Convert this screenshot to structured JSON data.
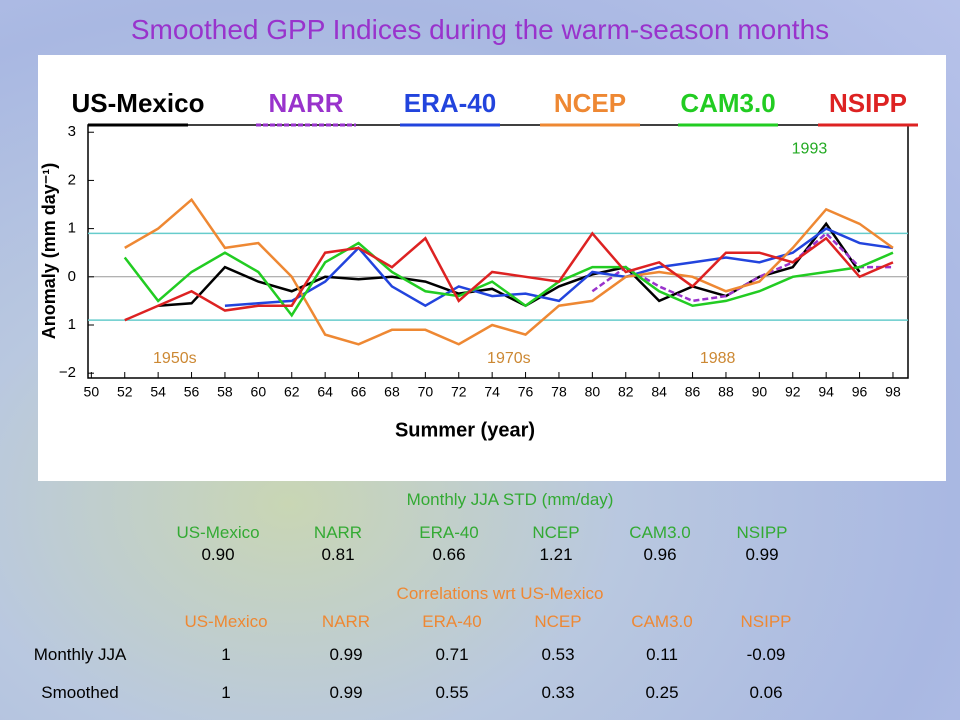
{
  "title": "Smoothed GPP Indices during the warm-season  months",
  "chart_data": {
    "type": "line",
    "ylabel": "Anomaly (mm day⁻¹)",
    "xlabel": "Summer (year)",
    "x": [
      1950,
      1952,
      1954,
      1956,
      1958,
      1960,
      1962,
      1964,
      1966,
      1968,
      1970,
      1972,
      1974,
      1976,
      1978,
      1980,
      1982,
      1984,
      1986,
      1988,
      1990,
      1992,
      1994,
      1996,
      1998
    ],
    "xlim": [
      1949.8,
      1998.9
    ],
    "ylim": [
      -2.1,
      3.15
    ],
    "xticks": [
      {
        "value": 1950,
        "label": "50"
      },
      {
        "value": 1952,
        "label": "52"
      },
      {
        "value": 1954,
        "label": "54"
      },
      {
        "value": 1956,
        "label": "56"
      },
      {
        "value": 1958,
        "label": "58"
      },
      {
        "value": 1960,
        "label": "60"
      },
      {
        "value": 1962,
        "label": "62"
      },
      {
        "value": 1964,
        "label": "64"
      },
      {
        "value": 1966,
        "label": "66"
      },
      {
        "value": 1968,
        "label": "68"
      },
      {
        "value": 1970,
        "label": "70"
      },
      {
        "value": 1972,
        "label": "72"
      },
      {
        "value": 1974,
        "label": "74"
      },
      {
        "value": 1976,
        "label": "76"
      },
      {
        "value": 1978,
        "label": "78"
      },
      {
        "value": 1980,
        "label": "80"
      },
      {
        "value": 1982,
        "label": "82"
      },
      {
        "value": 1984,
        "label": "84"
      },
      {
        "value": 1986,
        "label": "86"
      },
      {
        "value": 1988,
        "label": "88"
      },
      {
        "value": 1990,
        "label": "90"
      },
      {
        "value": 1992,
        "label": "92"
      },
      {
        "value": 1994,
        "label": "94"
      },
      {
        "value": 1996,
        "label": "96"
      },
      {
        "value": 1998,
        "label": "98"
      }
    ],
    "yticks": [
      3,
      2,
      1,
      0,
      {
        "value": -1,
        "label": "1"
      },
      {
        "value": -2,
        "label": "−2"
      }
    ],
    "bands": [
      0.9,
      -0.9
    ],
    "band_color": "#66cccc",
    "annotations": [
      {
        "text": "1950s",
        "x": 1955,
        "y": -1.7
      },
      {
        "text": "1970s",
        "x": 1975,
        "y": -1.7
      },
      {
        "text": "1988",
        "x": 1987.5,
        "y": -1.7
      },
      {
        "text": "1993",
        "x": 1993,
        "y": 2.65
      }
    ],
    "series": [
      {
        "name": "US-Mexico",
        "color": "#000000",
        "values": [
          null,
          null,
          -0.6,
          -0.55,
          0.2,
          -0.1,
          -0.3,
          0.0,
          -0.05,
          0.0,
          -0.1,
          -0.35,
          -0.25,
          -0.6,
          -0.2,
          0.05,
          0.2,
          -0.5,
          -0.2,
          -0.4,
          0.0,
          0.2,
          1.1,
          0.1,
          null
        ]
      },
      {
        "name": "NARR",
        "color": "#9933cc",
        "dashed": true,
        "values": [
          null,
          null,
          null,
          null,
          null,
          null,
          null,
          null,
          null,
          null,
          null,
          null,
          null,
          null,
          null,
          -0.3,
          0.2,
          -0.2,
          -0.5,
          -0.4,
          0.0,
          0.3,
          0.9,
          0.2,
          0.2
        ]
      },
      {
        "name": "ERA-40",
        "color": "#2244dd",
        "values": [
          null,
          null,
          null,
          null,
          -0.6,
          -0.55,
          -0.5,
          -0.1,
          0.6,
          -0.2,
          -0.6,
          -0.2,
          -0.4,
          -0.35,
          -0.5,
          0.1,
          0.0,
          0.2,
          0.3,
          0.4,
          0.3,
          0.5,
          1.0,
          0.7,
          0.6
        ]
      },
      {
        "name": "NCEP",
        "color": "#ee8833",
        "values": [
          null,
          0.6,
          1.0,
          1.6,
          0.6,
          0.7,
          0.0,
          -1.2,
          -1.4,
          -1.1,
          -1.1,
          -1.4,
          -1.0,
          -1.2,
          -0.6,
          -0.5,
          0.0,
          0.1,
          0.0,
          -0.3,
          -0.1,
          0.6,
          1.4,
          1.1,
          0.6
        ]
      },
      {
        "name": "CAM3.0",
        "color": "#22cc22",
        "values": [
          null,
          0.4,
          -0.5,
          0.1,
          0.5,
          0.1,
          -0.8,
          0.3,
          0.7,
          0.1,
          -0.3,
          -0.4,
          -0.1,
          -0.6,
          -0.1,
          0.2,
          0.2,
          -0.3,
          -0.6,
          -0.5,
          -0.3,
          0.0,
          0.1,
          0.2,
          0.5
        ]
      },
      {
        "name": "NSIPP",
        "color": "#dd2222",
        "values": [
          null,
          -0.9,
          -0.6,
          -0.3,
          -0.7,
          -0.6,
          -0.6,
          0.5,
          0.6,
          0.2,
          0.8,
          -0.5,
          0.1,
          0.0,
          -0.1,
          0.9,
          0.1,
          0.3,
          -0.2,
          0.5,
          0.5,
          0.3,
          0.8,
          0.0,
          0.3
        ]
      }
    ]
  },
  "std_table": {
    "title": "Monthly JJA STD (mm/day)",
    "headers": [
      "US-Mexico",
      "NARR",
      "ERA-40",
      "NCEP",
      "CAM3.0",
      "NSIPP"
    ],
    "values": [
      "0.90",
      "0.81",
      "0.66",
      "1.21",
      "0.96",
      "0.99"
    ]
  },
  "correlation_table": {
    "title": "Correlations wrt US-Mexico",
    "headers": [
      "US-Mexico",
      "NARR",
      "ERA-40",
      "NCEP",
      "CAM3.0",
      "NSIPP"
    ],
    "rows": [
      {
        "label": "Monthly JJA",
        "values": [
          "1",
          "0.99",
          "0.71",
          "0.53",
          "0.11",
          "-0.09"
        ]
      },
      {
        "label": "Smoothed",
        "values": [
          "1",
          "0.99",
          "0.55",
          "0.33",
          "0.25",
          "0.06"
        ]
      }
    ]
  }
}
